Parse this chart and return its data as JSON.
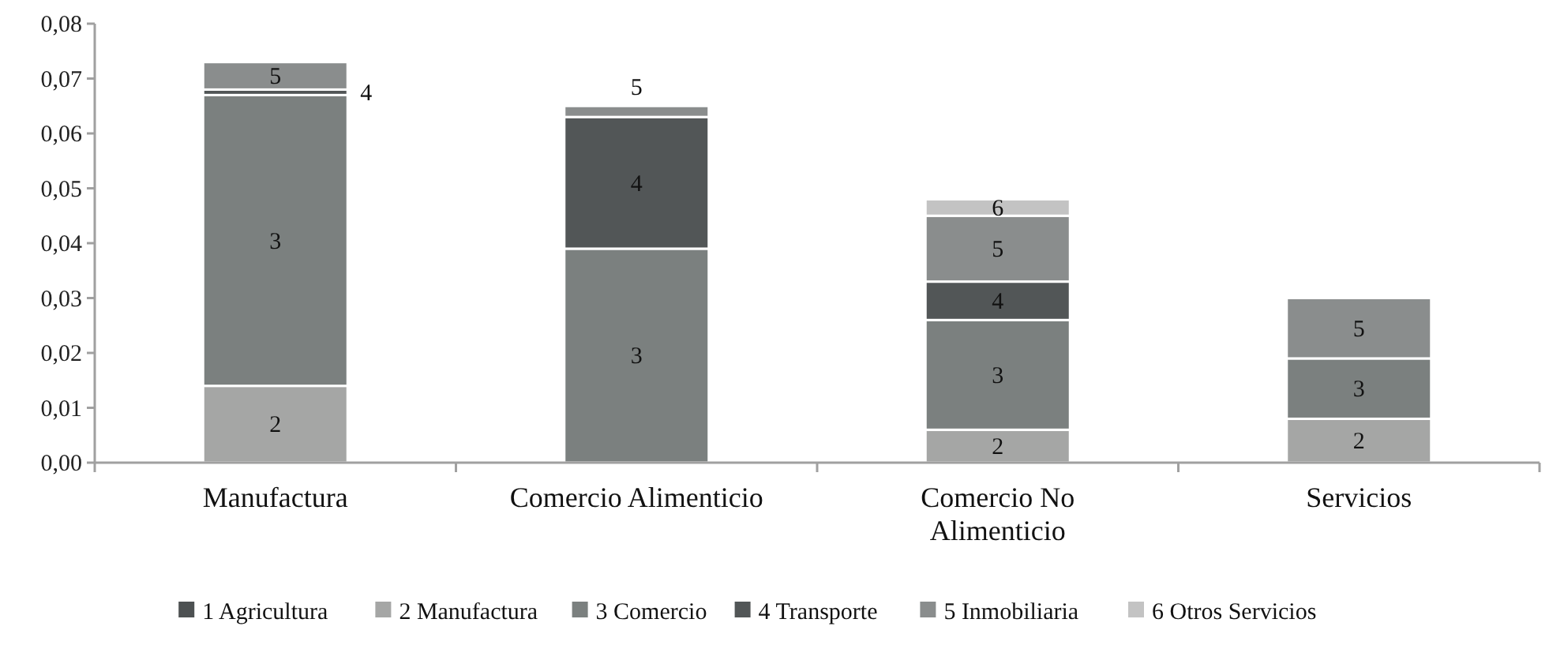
{
  "chart_data": {
    "type": "bar",
    "stacked": true,
    "categories": [
      "Manufactura",
      "Comercio Alimenticio",
      "Comercio No Alimenticio",
      "Servicios"
    ],
    "series": [
      {
        "name": "1 Agricultura",
        "color": "#4d5152",
        "values": [
          0,
          0,
          0,
          0
        ]
      },
      {
        "name": "2 Manufactura",
        "color": "#a5a6a5",
        "values": [
          0.014,
          0,
          0.006,
          0.008
        ]
      },
      {
        "name": "3 Comercio",
        "color": "#7b807f",
        "values": [
          0.053,
          0.039,
          0.02,
          0.011
        ]
      },
      {
        "name": "4 Transporte",
        "color": "#525657",
        "values": [
          0.001,
          0.024,
          0.007,
          0
        ]
      },
      {
        "name": "5 Inmobiliaria",
        "color": "#8a8d8d",
        "values": [
          0.005,
          0.002,
          0.012,
          0.011
        ]
      },
      {
        "name": "6 Otros Servicios",
        "color": "#c3c3c3",
        "values": [
          0,
          0,
          0.003,
          0
        ]
      }
    ],
    "annotations": [
      "2",
      "3",
      "4",
      "5",
      "3",
      "4",
      "5",
      "2",
      "3",
      "4",
      "5",
      "6",
      "2",
      "3",
      "5"
    ],
    "ylim": [
      0,
      0.08
    ],
    "yticks": [
      {
        "value": 0,
        "label": "0,00"
      },
      {
        "value": 0.01,
        "label": "0,01"
      },
      {
        "value": 0.02,
        "label": "0,02"
      },
      {
        "value": 0.03,
        "label": "0,03"
      },
      {
        "value": 0.04,
        "label": "0,04"
      },
      {
        "value": 0.05,
        "label": "0,05"
      },
      {
        "value": 0.06,
        "label": "0,06"
      },
      {
        "value": 0.07,
        "label": "0,07"
      },
      {
        "value": 0.08,
        "label": "0,08"
      }
    ],
    "grid": false,
    "legend": "bottom"
  }
}
